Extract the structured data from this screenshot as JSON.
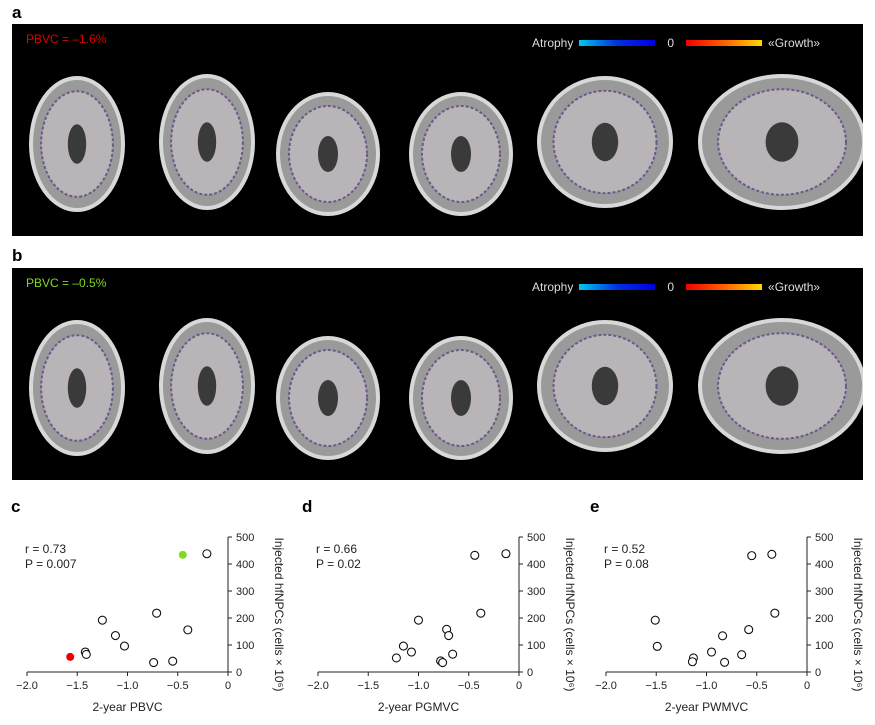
{
  "panel_a": {
    "label": "a",
    "pbvc_text": "PBVC = –1.6%",
    "pbvc_color": "#e00000",
    "legend": {
      "left": "Atrophy",
      "zero": "0",
      "right": "«Growth»"
    }
  },
  "panel_b": {
    "label": "b",
    "pbvc_text": "PBVC = –0.5%",
    "pbvc_color": "#7ddc1f",
    "legend": {
      "left": "Atrophy",
      "zero": "0",
      "right": "«Growth»"
    }
  },
  "chart_data": [
    {
      "panel": "c",
      "type": "scatter",
      "xlabel": "2-year PBVC",
      "ylabel": "Injected hfNPCs (cells × 10⁶)",
      "xlim": [
        -2,
        0
      ],
      "ylim": [
        0,
        500
      ],
      "xticks": [
        "−2.0",
        "−1.5",
        "−1.0",
        "−0.5",
        "0"
      ],
      "yticks": [
        "0",
        "100",
        "200",
        "300",
        "400",
        "500"
      ],
      "stat_r": "r = 0.73",
      "stat_p": "P = 0.007",
      "grid": false,
      "points": [
        {
          "x": -0.45,
          "y": 434,
          "fill": "#7ddc1f"
        },
        {
          "x": -0.21,
          "y": 438
        },
        {
          "x": -0.71,
          "y": 218
        },
        {
          "x": -1.25,
          "y": 192
        },
        {
          "x": -0.4,
          "y": 156
        },
        {
          "x": -1.12,
          "y": 135
        },
        {
          "x": -1.03,
          "y": 96
        },
        {
          "x": -1.42,
          "y": 74
        },
        {
          "x": -1.41,
          "y": 65
        },
        {
          "x": -1.57,
          "y": 56,
          "fill": "#ee0000"
        },
        {
          "x": -0.74,
          "y": 35
        },
        {
          "x": -0.55,
          "y": 40
        }
      ]
    },
    {
      "panel": "d",
      "type": "scatter",
      "xlabel": "2-year PGMVC",
      "ylabel": "Injected hfNPCs (cells × 10⁶)",
      "xlim": [
        -2,
        0
      ],
      "ylim": [
        0,
        500
      ],
      "xticks": [
        "−2.0",
        "−1.5",
        "−1.0",
        "−0.5",
        "0"
      ],
      "yticks": [
        "0",
        "100",
        "200",
        "300",
        "400",
        "500"
      ],
      "stat_r": "r = 0.66",
      "stat_p": "P = 0.02",
      "grid": false,
      "points": [
        {
          "x": -0.44,
          "y": 432
        },
        {
          "x": -0.13,
          "y": 438
        },
        {
          "x": -0.38,
          "y": 218
        },
        {
          "x": -1.0,
          "y": 192
        },
        {
          "x": -0.72,
          "y": 158
        },
        {
          "x": -0.7,
          "y": 135
        },
        {
          "x": -1.15,
          "y": 96
        },
        {
          "x": -1.07,
          "y": 74
        },
        {
          "x": -1.22,
          "y": 52
        },
        {
          "x": -0.66,
          "y": 66
        },
        {
          "x": -0.78,
          "y": 41
        },
        {
          "x": -0.76,
          "y": 35
        }
      ]
    },
    {
      "panel": "e",
      "type": "scatter",
      "xlabel": "2-year PWMVC",
      "ylabel": "Injected hfNPCs (cells × 10⁶)",
      "xlim": [
        -2,
        0
      ],
      "ylim": [
        0,
        500
      ],
      "xticks": [
        "−2.0",
        "−1.5",
        "−1.0",
        "−0.5",
        "0"
      ],
      "yticks": [
        "0",
        "100",
        "200",
        "300",
        "400",
        "500"
      ],
      "stat_r": "r = 0.52",
      "stat_p": "P = 0.08",
      "grid": false,
      "points": [
        {
          "x": -0.55,
          "y": 431
        },
        {
          "x": -0.35,
          "y": 436
        },
        {
          "x": -0.32,
          "y": 218
        },
        {
          "x": -1.51,
          "y": 192
        },
        {
          "x": -0.58,
          "y": 157
        },
        {
          "x": -0.84,
          "y": 134
        },
        {
          "x": -1.49,
          "y": 95
        },
        {
          "x": -0.95,
          "y": 74
        },
        {
          "x": -1.13,
          "y": 52
        },
        {
          "x": -1.14,
          "y": 38
        },
        {
          "x": -0.65,
          "y": 64
        },
        {
          "x": -0.82,
          "y": 36
        }
      ]
    }
  ]
}
